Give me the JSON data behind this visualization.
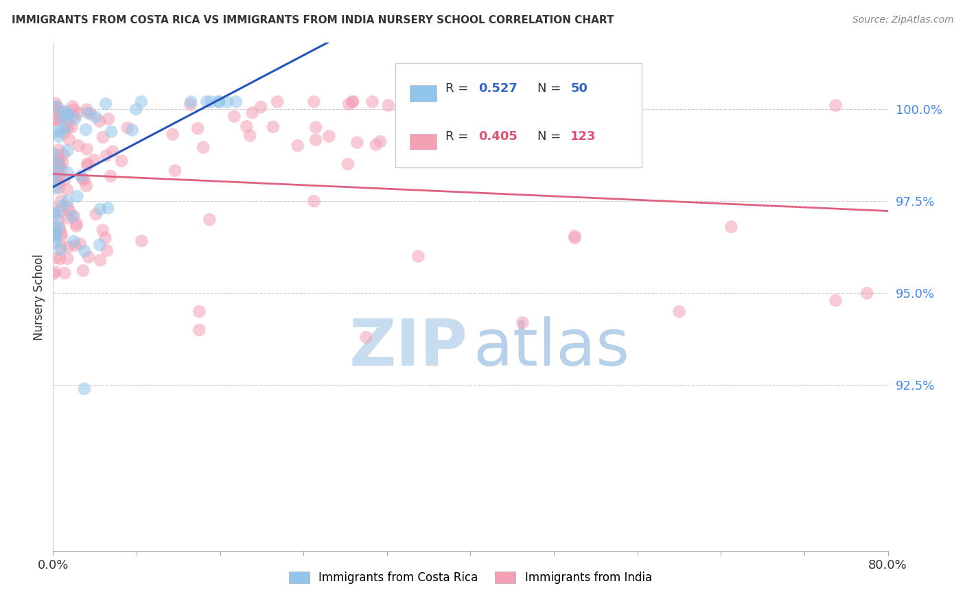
{
  "title": "IMMIGRANTS FROM COSTA RICA VS IMMIGRANTS FROM INDIA NURSERY SCHOOL CORRELATION CHART",
  "source": "Source: ZipAtlas.com",
  "ylabel": "Nursery School",
  "ytick_labels": [
    "100.0%",
    "97.5%",
    "95.0%",
    "92.5%"
  ],
  "ytick_values": [
    1.0,
    0.975,
    0.95,
    0.925
  ],
  "xlim": [
    0.0,
    0.8
  ],
  "ylim": [
    0.88,
    1.018
  ],
  "legend_blue_label": "Immigrants from Costa Rica",
  "legend_pink_label": "Immigrants from India",
  "blue_color": "#92C5EA",
  "pink_color": "#F4A0B5",
  "blue_line_color": "#2255BB",
  "pink_line_color": "#E06080",
  "watermark_zip_color": "#C8DCF0",
  "watermark_atlas_color": "#B0CCE8",
  "background_color": "#FFFFFF",
  "grid_color": "#CCCCCC",
  "title_color": "#333333",
  "source_color": "#888888",
  "ytick_color": "#4488EE",
  "xtick_color": "#333333",
  "ylabel_color": "#333333"
}
